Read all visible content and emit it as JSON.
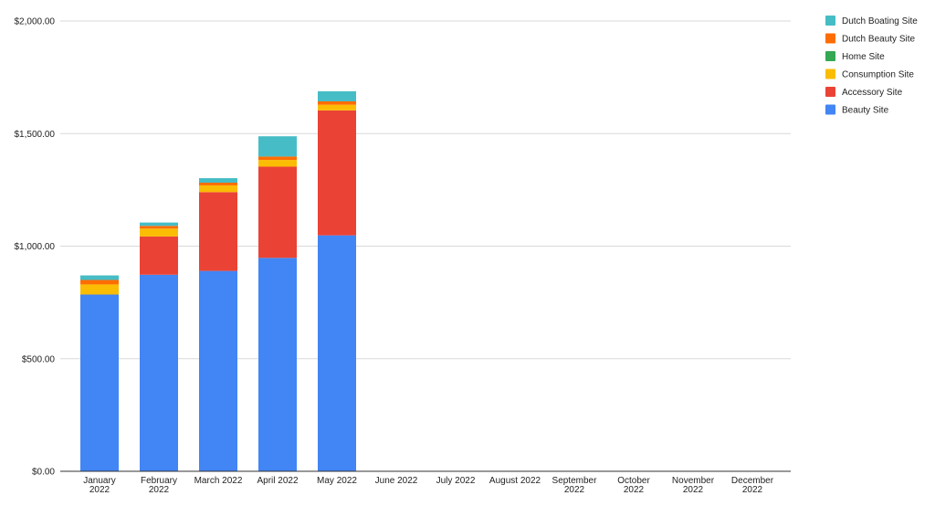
{
  "chart_data": {
    "type": "bar",
    "stacked": true,
    "title": "",
    "xlabel": "",
    "ylabel": "",
    "ylim": [
      0,
      2000
    ],
    "yticks": [
      {
        "value": 0,
        "label": "$0.00"
      },
      {
        "value": 500,
        "label": "$500.00"
      },
      {
        "value": 1000,
        "label": "$1,000.00"
      },
      {
        "value": 1500,
        "label": "$1,500.00"
      },
      {
        "value": 2000,
        "label": "$2,000.00"
      }
    ],
    "grid": true,
    "legend_position": "right",
    "categories": [
      [
        "January",
        "2022"
      ],
      [
        "February",
        "2022"
      ],
      [
        "March 2022"
      ],
      [
        "April 2022"
      ],
      [
        "May 2022"
      ],
      [
        "June 2022"
      ],
      [
        "July 2022"
      ],
      [
        "August 2022"
      ],
      [
        "September",
        "2022"
      ],
      [
        "October",
        "2022"
      ],
      [
        "November",
        "2022"
      ],
      [
        "December",
        "2022"
      ]
    ],
    "series": [
      {
        "name": "Beauty Site",
        "color": "#4285F4",
        "values": [
          785,
          873,
          890,
          948,
          1048,
          0,
          0,
          0,
          0,
          0,
          0,
          0
        ]
      },
      {
        "name": "Accessory Site",
        "color": "#EA4335",
        "values": [
          0,
          170,
          350,
          405,
          555,
          0,
          0,
          0,
          0,
          0,
          0,
          0
        ]
      },
      {
        "name": "Consumption Site",
        "color": "#FBBC04",
        "values": [
          45,
          35,
          30,
          30,
          25,
          0,
          0,
          0,
          0,
          0,
          0,
          0
        ]
      },
      {
        "name": "Home Site",
        "color": "#34A853",
        "values": [
          0,
          0,
          0,
          0,
          0,
          0,
          0,
          0,
          0,
          0,
          0,
          0
        ]
      },
      {
        "name": "Dutch Beauty Site",
        "color": "#FF6D01",
        "values": [
          20,
          12,
          12,
          15,
          15,
          0,
          0,
          0,
          0,
          0,
          0,
          0
        ]
      },
      {
        "name": "Dutch Boating Site",
        "color": "#46BDC6",
        "values": [
          20,
          15,
          20,
          90,
          45,
          0,
          0,
          0,
          0,
          0,
          0,
          0
        ]
      }
    ],
    "legend_order": [
      "Dutch Boating Site",
      "Dutch Beauty Site",
      "Home Site",
      "Consumption Site",
      "Accessory Site",
      "Beauty Site"
    ]
  }
}
